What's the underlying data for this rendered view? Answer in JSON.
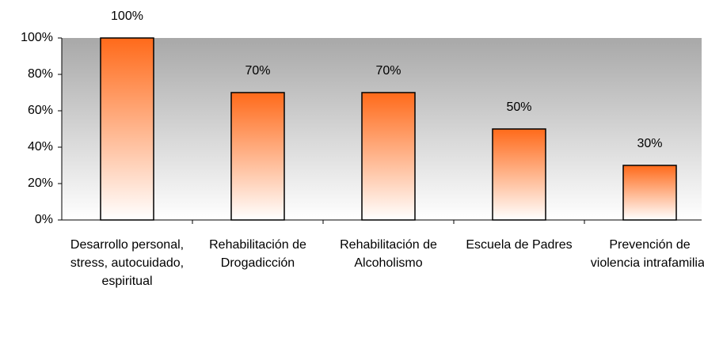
{
  "chart_data": {
    "type": "bar",
    "categories": [
      "Desarrollo personal, stress, autocuidado, espiritual",
      "Rehabilitación de Drogadicción",
      "Rehabilitación de Alcoholismo",
      "Escuela de Padres",
      "Prevención de violencia intrafamiliar"
    ],
    "values": [
      100,
      70,
      70,
      50,
      30
    ],
    "value_labels": [
      "100%",
      "70%",
      "70%",
      "50%",
      "30%"
    ],
    "color": "#ff6a1a",
    "ylim": [
      0,
      100
    ],
    "yticks": [
      {
        "value": 0,
        "label": "0%"
      },
      {
        "value": 20,
        "label": "20%"
      },
      {
        "value": 40,
        "label": "40%"
      },
      {
        "value": 60,
        "label": "60%"
      },
      {
        "value": 80,
        "label": "80%"
      },
      {
        "value": 100,
        "label": "100%"
      }
    ]
  }
}
